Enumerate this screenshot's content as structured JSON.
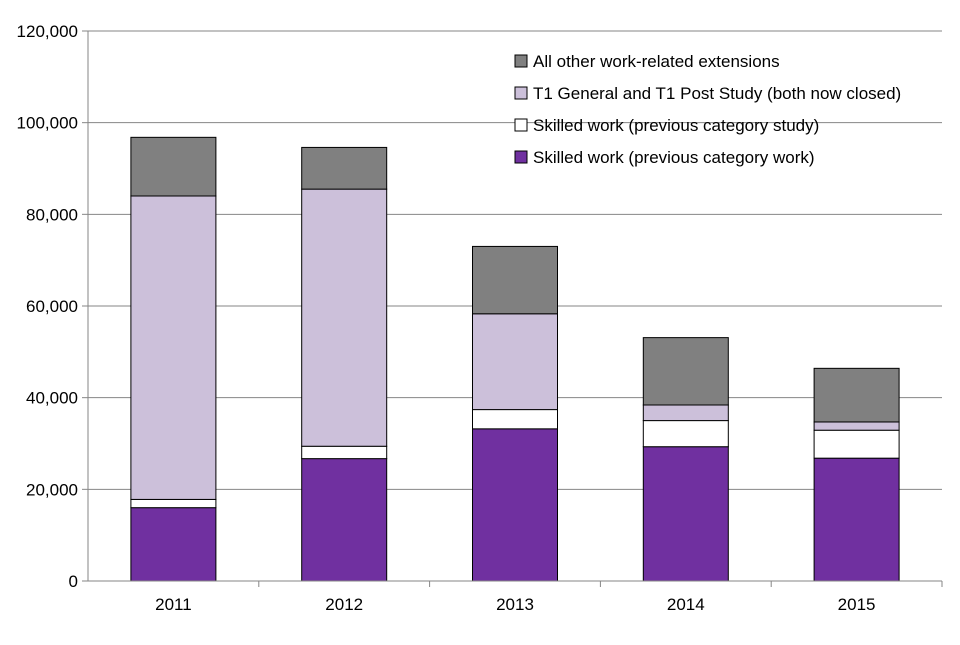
{
  "chart_data": {
    "type": "bar",
    "stacked": true,
    "title": "",
    "xlabel": "",
    "ylabel": "",
    "categories": [
      "2011",
      "2012",
      "2013",
      "2014",
      "2015"
    ],
    "ylim": [
      0,
      120000
    ],
    "yticks": [
      0,
      20000,
      40000,
      60000,
      80000,
      100000,
      120000
    ],
    "ytick_labels": [
      "0",
      "20,000",
      "40,000",
      "60,000",
      "80,000",
      "100,000",
      "120,000"
    ],
    "grid": true,
    "legend_position": "top-right",
    "series": [
      {
        "name": "Skilled work (previous category work)",
        "color": "#7030a0",
        "values": [
          16000,
          26700,
          33200,
          29300,
          26800
        ]
      },
      {
        "name": "Skilled work (previous category study)",
        "color": "#ffffff",
        "values": [
          1800,
          2700,
          4200,
          5700,
          6100
        ]
      },
      {
        "name": "T1 General and T1 Post Study (both now closed)",
        "color": "#ccc0da",
        "values": [
          66200,
          56100,
          20900,
          3400,
          1800
        ]
      },
      {
        "name": "All other work-related extensions",
        "color": "#808080",
        "values": [
          12800,
          9100,
          14700,
          14700,
          11700
        ]
      }
    ]
  }
}
